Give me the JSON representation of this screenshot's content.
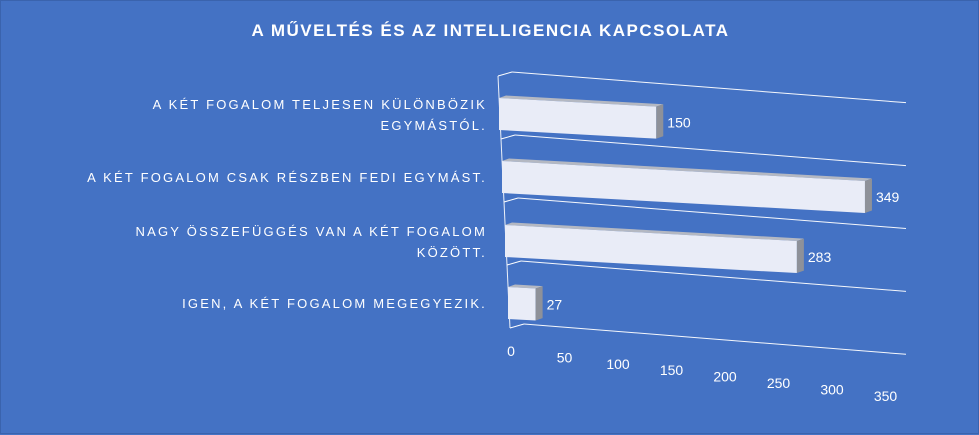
{
  "chart_data": {
    "type": "bar",
    "orientation": "horizontal",
    "style": "3d",
    "title": "A MŰVELTÉS ÉS AZ INTELLIGENCIA KAPCSOLATA",
    "categories": [
      [
        "A KÉT FOGALOM TELJESEN KÜLÖNBÖZIK",
        "EGYMÁSTÓL."
      ],
      [
        "A KÉT FOGALOM CSAK RÉSZBEN FEDI EGYMÁST."
      ],
      [
        "NAGY ÖSSZEFÜGGÉS VAN A KÉT FOGALOM",
        "KÖZÖTT."
      ],
      [
        "IGEN, A KÉT FOGALOM MEGEGYEZIK."
      ]
    ],
    "values": [
      150,
      349,
      283,
      27
    ],
    "data_labels": [
      "150",
      "349",
      "283",
      "27"
    ],
    "xlim": [
      0,
      350
    ],
    "x_ticks": [
      "0",
      "50",
      "100",
      "150",
      "200",
      "250",
      "300",
      "350"
    ],
    "grid": true,
    "legend": "none",
    "colors": {
      "background": "#4472c4",
      "bar_face": "#e9ecf7",
      "bar_top": "#b4b8c2",
      "bar_side": "#8e9199",
      "gridline": "#ffffff",
      "text": "#ffffff"
    }
  }
}
